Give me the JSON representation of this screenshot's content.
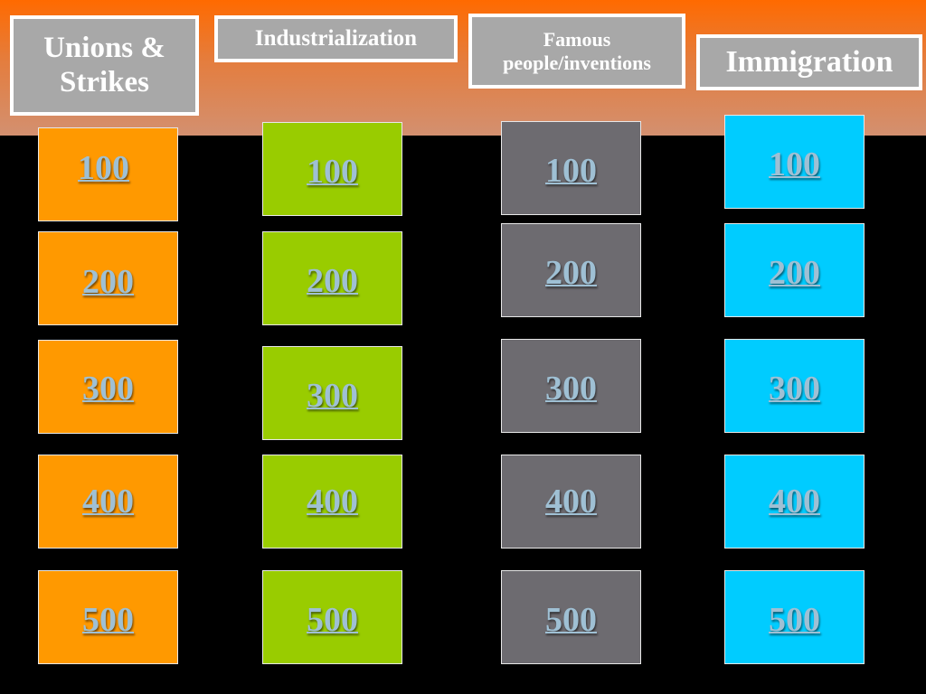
{
  "colors": {
    "header_band": "#ff6a00",
    "category_box": "#a8a8a8",
    "link_text": "#9fc0d4"
  },
  "categories": [
    {
      "label": "Unions &\nStrikes",
      "color": "#ff9900"
    },
    {
      "label": "Industrialization",
      "color": "#99cc00"
    },
    {
      "label": "Famous\npeople/inventions",
      "color": "#6d6b70"
    },
    {
      "label": "Immigration",
      "color": "#00ccff"
    }
  ],
  "tiles": [
    [
      "100",
      "200",
      "300",
      "400",
      "500"
    ],
    [
      "100",
      "200",
      "300",
      "400",
      "500"
    ],
    [
      "100",
      "200",
      "300",
      "400",
      "500"
    ],
    [
      "100",
      "200",
      "300",
      "400",
      "500"
    ]
  ]
}
